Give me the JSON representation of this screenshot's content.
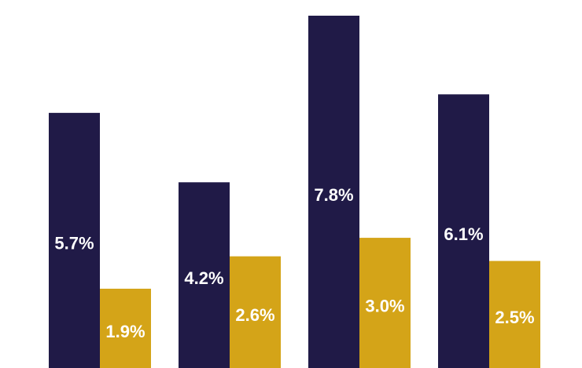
{
  "chart_data": {
    "type": "bar",
    "categories": [
      null,
      null,
      null,
      null
    ],
    "series": [
      {
        "color": "#201a47",
        "values": [
          5.7,
          4.2,
          7.8,
          6.1
        ],
        "value_labels": [
          "5.7%",
          "4.2%",
          "7.8%",
          "6.1%"
        ]
      },
      {
        "color": "#d4a418",
        "values": [
          1.9,
          2.6,
          3.0,
          2.5
        ],
        "value_labels": [
          "1.9%",
          "2.6%",
          "3.0%",
          "2.5%"
        ]
      }
    ]
  }
}
